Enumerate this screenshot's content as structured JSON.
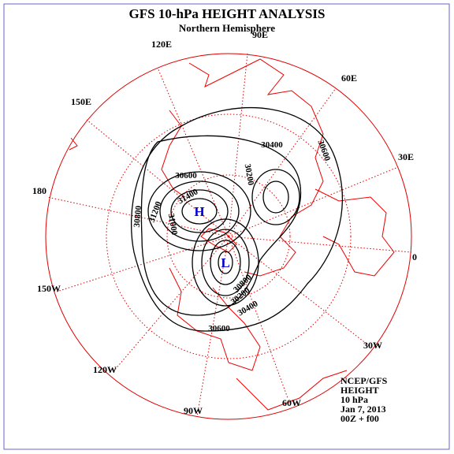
{
  "header": {
    "title": "GFS 10-hPa HEIGHT ANALYSIS",
    "subtitle": "Northern Hemisphere"
  },
  "longitudes": [
    "90E",
    "120E",
    "60E",
    "150E",
    "30E",
    "180",
    "0",
    "150W",
    "30W",
    "120W",
    "60W",
    "90W"
  ],
  "centers": {
    "high": "H",
    "low": "L"
  },
  "contour_labels": [
    "30400",
    "30600",
    "30200",
    "30600",
    "31400",
    "30800",
    "31200",
    "31000",
    "30800",
    "30200",
    "30400",
    "30600"
  ],
  "info": [
    "NCEP/GFS",
    "HEIGHT",
    "10 hPa",
    "Jan 7, 2013",
    "00Z + f00"
  ]
}
